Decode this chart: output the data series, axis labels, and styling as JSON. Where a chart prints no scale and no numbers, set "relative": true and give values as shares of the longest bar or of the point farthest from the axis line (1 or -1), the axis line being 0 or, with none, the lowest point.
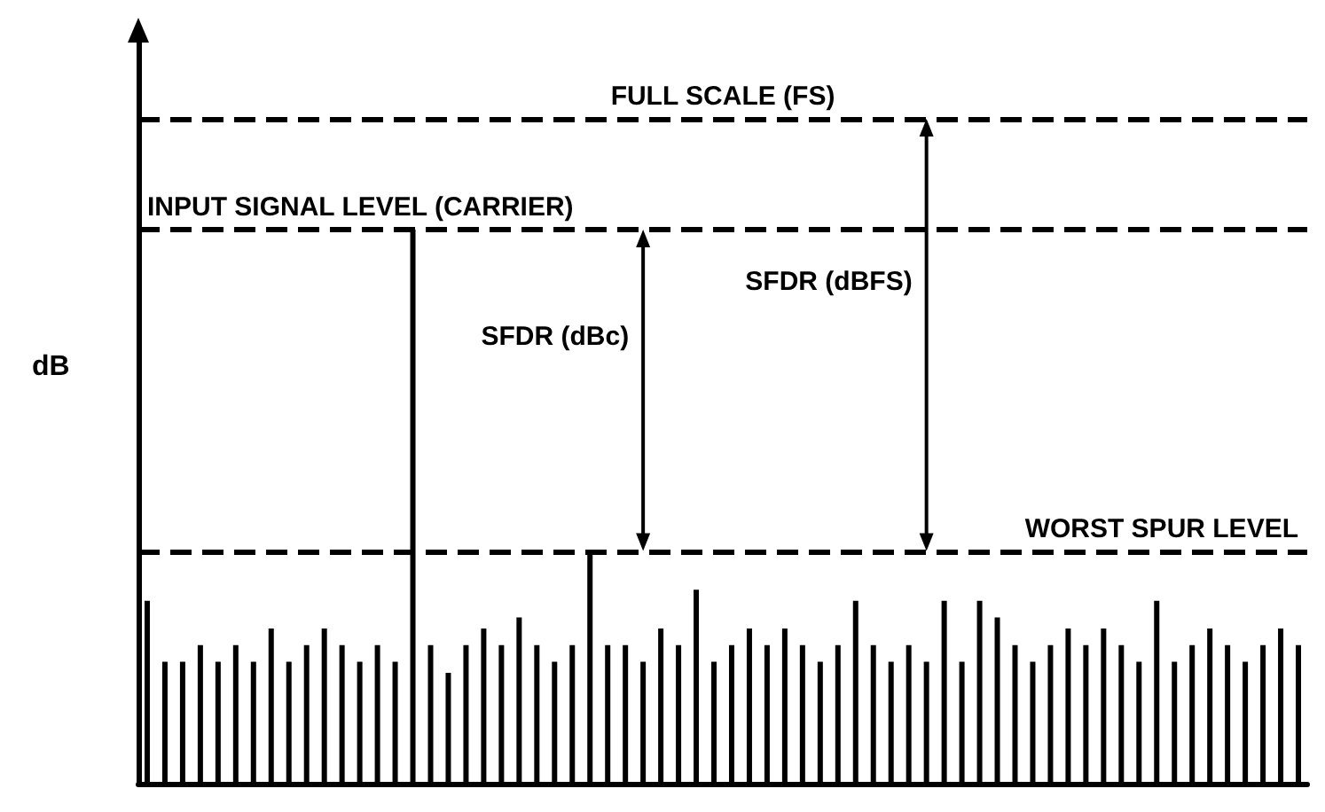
{
  "chart_data": {
    "type": "bar",
    "relative": true,
    "ylabel": "dB",
    "color": "#000000",
    "grid": false,
    "categories": [
      null,
      null,
      null,
      null,
      null,
      null,
      null,
      null,
      null,
      null,
      null,
      null,
      null,
      null,
      null,
      null,
      null,
      null,
      null,
      null,
      null,
      null,
      null,
      null,
      null,
      null,
      null,
      null,
      null,
      null,
      null,
      null,
      null,
      null,
      null,
      null,
      null,
      null,
      null,
      null,
      null,
      null,
      null,
      null,
      null,
      null,
      null,
      null,
      null,
      null,
      null,
      null,
      null,
      null,
      null,
      null,
      null,
      null,
      null,
      null,
      null,
      null,
      null,
      null,
      null,
      null
    ],
    "values": [
      0.33,
      0.22,
      0.22,
      0.25,
      0.22,
      0.25,
      0.22,
      0.28,
      0.22,
      0.25,
      0.28,
      0.25,
      0.22,
      0.25,
      0.22,
      1,
      0.25,
      0.2,
      0.25,
      0.28,
      0.25,
      0.3,
      0.25,
      0.22,
      0.25,
      0.42,
      0.25,
      0.25,
      0.22,
      0.28,
      0.25,
      0.35,
      0.22,
      0.25,
      0.28,
      0.25,
      0.28,
      0.25,
      0.22,
      0.25,
      0.33,
      0.25,
      0.22,
      0.25,
      0.22,
      0.33,
      0.22,
      0.33,
      0.3,
      0.25,
      0.22,
      0.25,
      0.28,
      0.25,
      0.28,
      0.25,
      0.22,
      0.33,
      0.22,
      0.25,
      0.28,
      0.25,
      0.22,
      0.25,
      0.28,
      0.25
    ],
    "ref_lines": [
      {
        "axis": "y",
        "value": 1.2,
        "label": "FULL SCALE (FS)",
        "line_style": "dashed"
      },
      {
        "axis": "y",
        "value": 1,
        "label": "INPUT SIGNAL LEVEL (CARRIER)",
        "line_style": "dashed"
      },
      {
        "axis": "y",
        "value": 0.42,
        "label": "WORST SPUR LEVEL",
        "line_style": "dashed"
      }
    ],
    "annotations": [
      "SFDR (dBc)",
      "SFDR (dBFS)"
    ]
  }
}
